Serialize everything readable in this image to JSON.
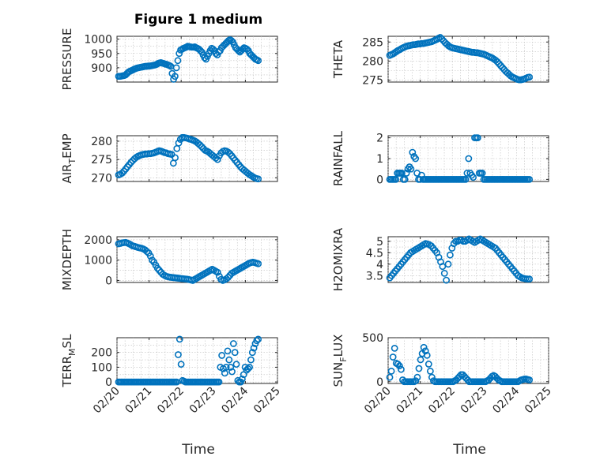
{
  "figure": {
    "title": "Figure 1 medium",
    "xlabel": "Time"
  },
  "chart_data": [
    {
      "type": "scatter",
      "ylabel": "PRESSURE",
      "xlim": [
        0,
        5
      ],
      "ylim": [
        850,
        1010
      ],
      "yticks": [
        900,
        950,
        1000
      ],
      "xtick_labels": [],
      "marker_color": "#0072BD",
      "grid": true,
      "y": [
        870,
        870,
        871,
        872,
        873,
        875,
        880,
        885,
        888,
        890,
        892,
        895,
        897,
        899,
        900,
        901,
        902,
        903,
        904,
        905,
        905,
        906,
        906,
        907,
        908,
        909,
        910,
        912,
        915,
        917,
        918,
        916,
        915,
        913,
        912,
        910,
        908,
        905,
        880,
        860,
        870,
        900,
        925,
        950,
        962,
        965,
        968,
        970,
        972,
        975,
        974,
        973,
        972,
        972,
        973,
        970,
        968,
        965,
        960,
        955,
        945,
        935,
        930,
        940,
        950,
        960,
        968,
        965,
        960,
        950,
        945,
        955,
        960,
        970,
        975,
        980,
        985,
        990,
        995,
        998,
        995,
        990,
        980,
        970,
        965,
        960,
        955,
        960,
        965,
        970,
        968,
        965,
        960,
        950,
        945,
        940,
        935,
        930,
        928,
        925
      ]
    },
    {
      "type": "scatter",
      "ylabel": "THETA",
      "xlim": [
        0,
        5
      ],
      "ylim": [
        274.5,
        286.5
      ],
      "yticks": [
        275,
        280,
        285
      ],
      "xtick_labels": [],
      "marker_color": "#0072BD",
      "grid": true,
      "y": [
        281.5,
        281.7,
        281.9,
        282.2,
        282.5,
        282.8,
        283.0,
        283.3,
        283.5,
        283.7,
        283.9,
        284.0,
        284.1,
        284.2,
        284.3,
        284.3,
        284.4,
        284.5,
        284.5,
        284.6,
        284.6,
        284.7,
        284.8,
        284.9,
        285.0,
        285.1,
        285.3,
        285.5,
        285.7,
        286.0,
        286.2,
        285.8,
        285.3,
        284.8,
        284.4,
        284.0,
        283.7,
        283.5,
        283.4,
        283.3,
        283.2,
        283.1,
        283.0,
        282.9,
        282.8,
        282.7,
        282.6,
        282.5,
        282.4,
        282.3,
        282.3,
        282.2,
        282.2,
        282.1,
        282.0,
        281.9,
        281.8,
        281.6,
        281.4,
        281.2,
        281.0,
        280.8,
        280.5,
        280.2,
        279.8,
        279.3,
        278.8,
        278.3,
        277.8,
        277.3,
        276.9,
        276.5,
        276.1,
        275.8,
        275.6,
        275.4,
        275.2,
        275.1,
        275.1,
        275.2,
        275.3,
        275.5,
        275.7,
        275.8
      ]
    },
    {
      "type": "scatter",
      "ylabel": "AIRTEMP",
      "ylabel_parts": [
        "AIR",
        "T",
        "EMP"
      ],
      "xlim": [
        0,
        5
      ],
      "ylim": [
        269,
        281.5
      ],
      "yticks": [
        270,
        275,
        280
      ],
      "xtick_labels": [],
      "marker_color": "#0072BD",
      "grid": true,
      "y": [
        270.8,
        271.0,
        271.3,
        271.8,
        272.4,
        273.0,
        273.6,
        274.2,
        274.7,
        275.2,
        275.6,
        275.9,
        276.1,
        276.3,
        276.4,
        276.5,
        276.5,
        276.6,
        276.6,
        276.7,
        276.8,
        277.0,
        277.2,
        277.4,
        277.3,
        277.1,
        276.9,
        276.8,
        276.6,
        276.5,
        276.4,
        274.0,
        275.5,
        278.0,
        279.5,
        280.5,
        281.0,
        281.0,
        280.9,
        280.8,
        280.6,
        280.5,
        280.3,
        280.1,
        279.8,
        279.4,
        279.0,
        278.5,
        278.0,
        277.5,
        277.3,
        277.0,
        276.6,
        276.2,
        275.8,
        275.4,
        275.0,
        276.0,
        276.8,
        277.2,
        277.4,
        277.3,
        277.0,
        276.6,
        276.0,
        275.4,
        274.8,
        274.2,
        273.6,
        273.0,
        272.5,
        272.1,
        271.7,
        271.3,
        270.9,
        270.6,
        270.3,
        270.0,
        269.8,
        269.7
      ]
    },
    {
      "type": "scatter",
      "ylabel": "RAINFALL",
      "xlim": [
        0,
        5
      ],
      "ylim": [
        -0.1,
        2.1
      ],
      "yticks": [
        0,
        1,
        2
      ],
      "xtick_labels": [],
      "marker_color": "#0072BD",
      "grid": true,
      "y": [
        0,
        0,
        0,
        0,
        0,
        0.3,
        0.3,
        0.3,
        0.3,
        0,
        0,
        0.3,
        0.5,
        0.6,
        0.5,
        1.3,
        1.1,
        1.0,
        0.3,
        0,
        0,
        0.2,
        0,
        0,
        0,
        0,
        0,
        0,
        0,
        0,
        0,
        0,
        0,
        0,
        0,
        0,
        0,
        0,
        0,
        0,
        0,
        0,
        0,
        0,
        0,
        0,
        0,
        0,
        0,
        0,
        0,
        0.3,
        1.0,
        0.3,
        0.2,
        0.1,
        2.0,
        2.0,
        2.0,
        0.3,
        0.3,
        0.3,
        0,
        0,
        0,
        0,
        0,
        0,
        0,
        0,
        0,
        0,
        0,
        0,
        0,
        0,
        0,
        0,
        0,
        0,
        0,
        0,
        0,
        0,
        0,
        0,
        0,
        0,
        0,
        0,
        0,
        0,
        0
      ]
    },
    {
      "type": "scatter",
      "ylabel": "MIXDEPTH",
      "xlim": [
        0,
        5
      ],
      "ylim": [
        -100,
        2150
      ],
      "yticks": [
        0,
        1000,
        2000
      ],
      "xtick_labels": [],
      "marker_color": "#0072BD",
      "grid": true,
      "y": [
        1800,
        1820,
        1850,
        1860,
        1870,
        1840,
        1800,
        1750,
        1700,
        1680,
        1650,
        1620,
        1600,
        1580,
        1550,
        1500,
        1420,
        1350,
        1200,
        1000,
        900,
        750,
        600,
        500,
        400,
        300,
        250,
        200,
        180,
        160,
        150,
        140,
        130,
        120,
        110,
        100,
        90,
        80,
        70,
        60,
        40,
        20,
        0,
        50,
        100,
        150,
        200,
        250,
        300,
        350,
        400,
        450,
        500,
        550,
        500,
        450,
        400,
        200,
        50,
        0,
        30,
        80,
        150,
        250,
        350,
        400,
        450,
        500,
        550,
        600,
        650,
        700,
        750,
        800,
        850,
        880,
        900,
        880,
        850,
        820
      ]
    },
    {
      "type": "scatter",
      "ylabel": "H2OMIXRA",
      "xlim": [
        0,
        5
      ],
      "ylim": [
        3.2,
        5.2
      ],
      "yticks": [
        3.5,
        4,
        4.5,
        5
      ],
      "xtick_labels": [],
      "marker_color": "#0072BD",
      "grid": true,
      "y": [
        3.4,
        3.5,
        3.6,
        3.7,
        3.8,
        3.9,
        4.0,
        4.1,
        4.2,
        4.3,
        4.4,
        4.5,
        4.55,
        4.6,
        4.65,
        4.7,
        4.75,
        4.8,
        4.85,
        4.9,
        4.88,
        4.85,
        4.8,
        4.7,
        4.6,
        4.5,
        4.3,
        4.1,
        3.9,
        3.6,
        3.3,
        4.0,
        4.4,
        4.7,
        4.9,
        5.0,
        5.0,
        5.05,
        5.05,
        5.0,
        5.0,
        5.05,
        5.1,
        5.05,
        5.0,
        4.95,
        5.0,
        5.05,
        5.1,
        5.05,
        5.0,
        4.95,
        4.9,
        4.85,
        4.8,
        4.75,
        4.7,
        4.6,
        4.5,
        4.4,
        4.3,
        4.2,
        4.1,
        4.0,
        3.9,
        3.8,
        3.7,
        3.6,
        3.5,
        3.45,
        3.4,
        3.38,
        3.36,
        3.35,
        3.35
      ]
    },
    {
      "type": "scatter",
      "ylabel": "TERRMSL",
      "ylabel_parts": [
        "TERR",
        "M",
        "SL"
      ],
      "xlim": [
        0,
        5
      ],
      "ylim": [
        -10,
        300
      ],
      "yticks": [
        0,
        100,
        200
      ],
      "xtick_labels": [
        "02/20",
        "02/21",
        "02/22",
        "02/23",
        "02/24",
        "02/25"
      ],
      "marker_color": "#0072BD",
      "grid": true,
      "y": [
        0,
        0,
        0,
        0,
        0,
        0,
        0,
        0,
        0,
        0,
        0,
        0,
        0,
        0,
        0,
        0,
        0,
        0,
        0,
        0,
        0,
        0,
        0,
        0,
        0,
        0,
        0,
        0,
        0,
        0,
        0,
        0,
        0,
        0,
        0,
        0,
        0,
        0,
        0,
        0,
        0,
        185,
        290,
        120,
        10,
        5,
        0,
        0,
        0,
        0,
        0,
        0,
        0,
        0,
        0,
        0,
        0,
        0,
        0,
        0,
        0,
        0,
        0,
        0,
        0,
        0,
        0,
        0,
        0,
        0,
        100,
        180,
        90,
        60,
        100,
        210,
        150,
        100,
        70,
        260,
        200,
        120,
        10,
        0,
        0,
        20,
        50,
        100,
        80,
        90,
        100,
        150,
        200,
        230,
        260,
        280,
        290
      ]
    },
    {
      "type": "scatter",
      "ylabel": "SUNFLUX",
      "ylabel_parts": [
        "SUN",
        "F",
        "LUX"
      ],
      "xlim": [
        0,
        5
      ],
      "ylim": [
        -20,
        500
      ],
      "yticks": [
        0,
        500
      ],
      "xtick_labels": [
        "02/20",
        "02/21",
        "02/22",
        "02/23",
        "02/24",
        "02/25"
      ],
      "marker_color": "#0072BD",
      "grid": true,
      "y": [
        50,
        120,
        280,
        380,
        210,
        200,
        180,
        140,
        20,
        0,
        0,
        0,
        0,
        0,
        0,
        0,
        10,
        50,
        150,
        250,
        320,
        390,
        350,
        300,
        200,
        120,
        50,
        10,
        0,
        0,
        0,
        0,
        0,
        0,
        0,
        0,
        0,
        0,
        0,
        0,
        10,
        20,
        40,
        60,
        80,
        80,
        60,
        40,
        20,
        0,
        0,
        0,
        0,
        0,
        0,
        0,
        0,
        0,
        0,
        0,
        10,
        20,
        40,
        60,
        70,
        60,
        40,
        20,
        10,
        0,
        0,
        0,
        0,
        0,
        0,
        0,
        0,
        0,
        0,
        0,
        10,
        20,
        25,
        30,
        30,
        25,
        20
      ]
    }
  ]
}
